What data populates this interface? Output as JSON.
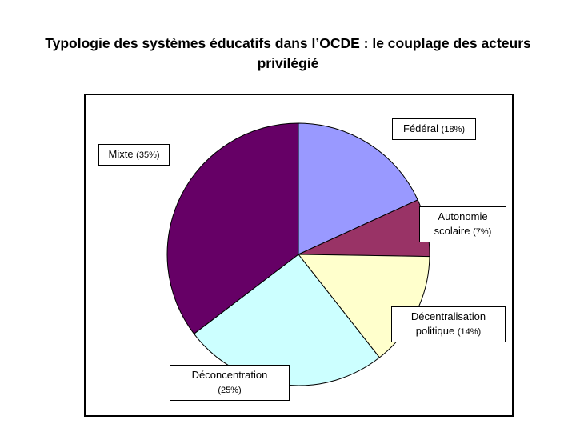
{
  "chart_data": {
    "type": "pie",
    "title": "Typologie des systèmes éducatifs dans l’OCDE : le couplage des acteurs privilégié",
    "categories": [
      "Fédéral",
      "Autonomie scolaire",
      "Décentralisation politique",
      "Déconcentration",
      "Mixte"
    ],
    "values": [
      18,
      7,
      14,
      25,
      35
    ],
    "value_labels": [
      "(18%)",
      "(7%)",
      "(14%)",
      "(25%)",
      "(35%)"
    ],
    "colors": [
      "#9999ff",
      "#993366",
      "#ffffcc",
      "#ccffff",
      "#660066"
    ]
  }
}
